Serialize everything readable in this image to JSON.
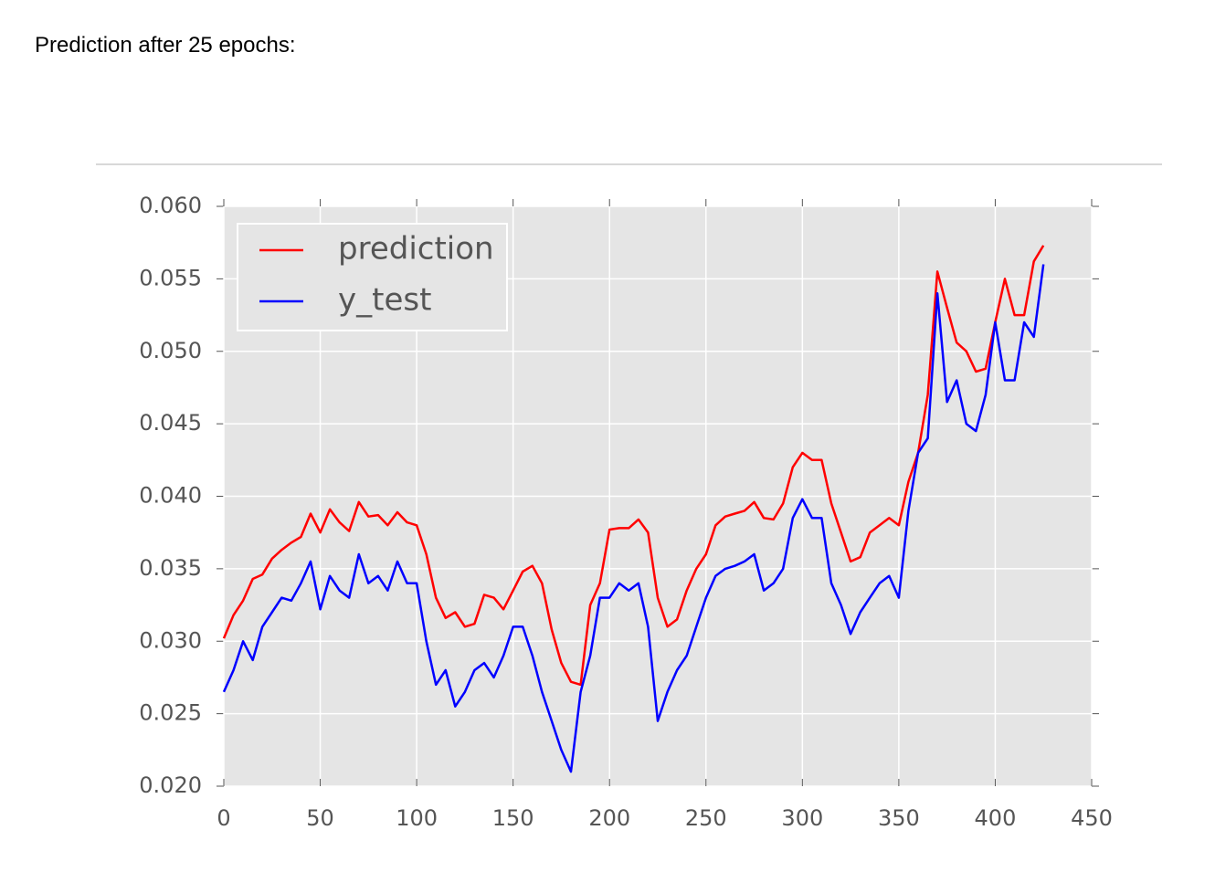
{
  "heading": "Prediction after 25 epochs:",
  "chart_data": {
    "type": "line",
    "x": [
      0,
      5,
      10,
      15,
      20,
      25,
      30,
      35,
      40,
      45,
      50,
      55,
      60,
      65,
      70,
      75,
      80,
      85,
      90,
      95,
      100,
      105,
      110,
      115,
      120,
      125,
      130,
      135,
      140,
      145,
      150,
      155,
      160,
      165,
      170,
      175,
      180,
      185,
      190,
      195,
      200,
      205,
      210,
      215,
      220,
      225,
      230,
      235,
      240,
      245,
      250,
      255,
      260,
      265,
      270,
      275,
      280,
      285,
      290,
      295,
      300,
      305,
      310,
      315,
      320,
      325,
      330,
      335,
      340,
      345,
      350,
      355,
      360,
      365,
      370,
      375,
      380,
      385,
      390,
      395,
      400,
      405,
      410,
      415,
      420,
      425
    ],
    "series": [
      {
        "name": "prediction",
        "color": "#ff0000",
        "values": [
          0.0302,
          0.0318,
          0.0328,
          0.0343,
          0.0346,
          0.0357,
          0.0363,
          0.0368,
          0.0372,
          0.0388,
          0.0375,
          0.0391,
          0.0382,
          0.0376,
          0.0396,
          0.0386,
          0.0387,
          0.038,
          0.0389,
          0.0382,
          0.038,
          0.036,
          0.033,
          0.0316,
          0.032,
          0.031,
          0.0312,
          0.0332,
          0.033,
          0.0322,
          0.0335,
          0.0348,
          0.0352,
          0.034,
          0.0308,
          0.0285,
          0.0272,
          0.027,
          0.0325,
          0.034,
          0.0377,
          0.0378,
          0.0378,
          0.0384,
          0.0375,
          0.033,
          0.031,
          0.0315,
          0.0335,
          0.035,
          0.036,
          0.038,
          0.0386,
          0.0388,
          0.039,
          0.0396,
          0.0385,
          0.0384,
          0.0395,
          0.042,
          0.043,
          0.0425,
          0.0425,
          0.0395,
          0.0375,
          0.0355,
          0.0358,
          0.0375,
          0.038,
          0.0385,
          0.038,
          0.041,
          0.043,
          0.047,
          0.0555,
          0.053,
          0.0506,
          0.05,
          0.0486,
          0.0488,
          0.052,
          0.055,
          0.0525,
          0.0525,
          0.0562,
          0.0573
        ]
      },
      {
        "name": "y_test",
        "color": "#0000ff",
        "values": [
          0.0265,
          0.028,
          0.03,
          0.0287,
          0.031,
          0.032,
          0.033,
          0.0328,
          0.034,
          0.0355,
          0.0322,
          0.0345,
          0.0335,
          0.033,
          0.036,
          0.034,
          0.0345,
          0.0335,
          0.0355,
          0.034,
          0.034,
          0.03,
          0.027,
          0.028,
          0.0255,
          0.0265,
          0.028,
          0.0285,
          0.0275,
          0.029,
          0.031,
          0.031,
          0.029,
          0.0265,
          0.0245,
          0.0225,
          0.021,
          0.0265,
          0.029,
          0.033,
          0.033,
          0.034,
          0.0335,
          0.034,
          0.031,
          0.0245,
          0.0265,
          0.028,
          0.029,
          0.031,
          0.033,
          0.0345,
          0.035,
          0.0352,
          0.0355,
          0.036,
          0.0335,
          0.034,
          0.035,
          0.0385,
          0.0398,
          0.0385,
          0.0385,
          0.034,
          0.0325,
          0.0305,
          0.032,
          0.033,
          0.034,
          0.0345,
          0.033,
          0.039,
          0.043,
          0.044,
          0.054,
          0.0465,
          0.048,
          0.045,
          0.0445,
          0.047,
          0.052,
          0.048,
          0.048,
          0.052,
          0.051,
          0.056
        ]
      }
    ],
    "xlim": [
      0,
      450
    ],
    "xticks": [
      0,
      50,
      100,
      150,
      200,
      250,
      300,
      350,
      400,
      450
    ],
    "ylim": [
      0.02,
      0.06
    ],
    "yticks": [
      {
        "value": 0.02,
        "label": "0.020"
      },
      0.025,
      {
        "value": 0.03,
        "label": "0.030"
      },
      0.035,
      {
        "value": 0.04,
        "label": "0.040"
      },
      0.045,
      {
        "value": 0.05,
        "label": "0.050"
      },
      0.055,
      {
        "value": 0.06,
        "label": "0.060"
      }
    ],
    "grid": true,
    "legend": "upper-left"
  }
}
